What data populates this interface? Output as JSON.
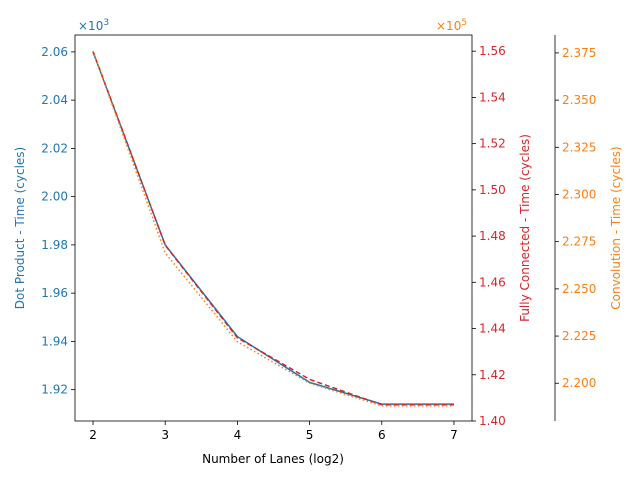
{
  "chart_data": {
    "type": "line",
    "x": [
      2,
      3,
      4,
      5,
      6,
      7
    ],
    "xticks": [
      2,
      3,
      4,
      5,
      6,
      7
    ],
    "xlim": [
      1.75,
      7.25
    ],
    "xlabel": "Number of Lanes (log2)",
    "series": [
      {
        "name": "Dot Product",
        "axis": "left",
        "values": [
          2060,
          1980,
          1942,
          1923,
          1914,
          1914
        ],
        "color": "#1f77b4",
        "style": "solid"
      },
      {
        "name": "Fully Connected",
        "axis": "right",
        "values": [
          156000,
          147600,
          143600,
          141800,
          140700,
          140700
        ],
        "color": "#d62728",
        "style": "dashed"
      },
      {
        "name": "Convolution",
        "axis": "right2",
        "values": [
          2.376,
          2.269,
          2.222,
          2.2,
          2.188,
          2.188
        ],
        "color": "#ff7f0e",
        "style": "dotted"
      }
    ],
    "axes": {
      "left": {
        "label": "Dot Product - Time (cycles)",
        "multiplier": "×10",
        "exponent": "3",
        "ticks": [
          1.92,
          1.94,
          1.96,
          1.98,
          2.0,
          2.02,
          2.04,
          2.06
        ],
        "tick_labels": [
          "1.92",
          "1.94",
          "1.96",
          "1.98",
          "2.00",
          "2.02",
          "2.04",
          "2.06"
        ],
        "range": [
          1907,
          2067
        ],
        "scale": 1000,
        "color": "#1f77b4"
      },
      "right": {
        "label": "Fully Connected - Time (cycles)",
        "multiplier": "×10",
        "exponent": "5",
        "ticks": [
          1.4,
          1.42,
          1.44,
          1.46,
          1.48,
          1.5,
          1.52,
          1.54,
          1.56
        ],
        "tick_labels": [
          "1.40",
          "1.42",
          "1.44",
          "1.46",
          "1.48",
          "1.50",
          "1.52",
          "1.54",
          "1.56"
        ],
        "range": [
          140000,
          156700
        ],
        "scale": 100000,
        "color": "#d62728"
      },
      "right2": {
        "label": "Convolution - Time (cycles)",
        "ticks": [
          2.2,
          2.225,
          2.25,
          2.275,
          2.3,
          2.325,
          2.35,
          2.375
        ],
        "tick_labels": [
          "2.200",
          "2.225",
          "2.250",
          "2.275",
          "2.300",
          "2.325",
          "2.350",
          "2.375"
        ],
        "range": [
          2.18,
          2.3845
        ],
        "scale": 1,
        "color": "#ff7f0e"
      }
    },
    "grid": false,
    "legend": "none"
  }
}
